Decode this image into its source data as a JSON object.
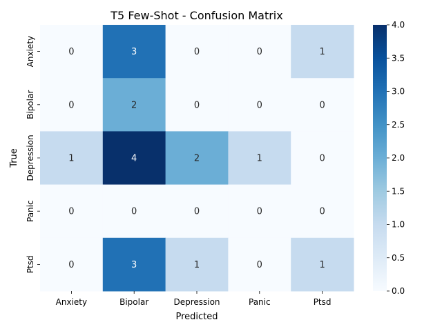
{
  "chart_data": {
    "type": "heatmap",
    "title": "T5 Few-Shot - Confusion Matrix",
    "xlabel": "Predicted",
    "ylabel": "True",
    "x_categories": [
      "Anxiety",
      "Bipolar",
      "Depression",
      "Panic",
      "Ptsd"
    ],
    "y_categories": [
      "Anxiety",
      "Bipolar",
      "Depression",
      "Panic",
      "Ptsd"
    ],
    "values": [
      [
        0,
        3,
        0,
        0,
        1
      ],
      [
        0,
        2,
        0,
        0,
        0
      ],
      [
        1,
        4,
        2,
        1,
        0
      ],
      [
        0,
        0,
        0,
        0,
        0
      ],
      [
        0,
        3,
        1,
        0,
        1
      ]
    ],
    "colorbar": {
      "range": [
        0,
        4
      ],
      "ticks": [
        "0.0",
        "0.5",
        "1.0",
        "1.5",
        "2.0",
        "2.5",
        "3.0",
        "3.5",
        "4.0"
      ],
      "colormap": "Blues"
    }
  }
}
